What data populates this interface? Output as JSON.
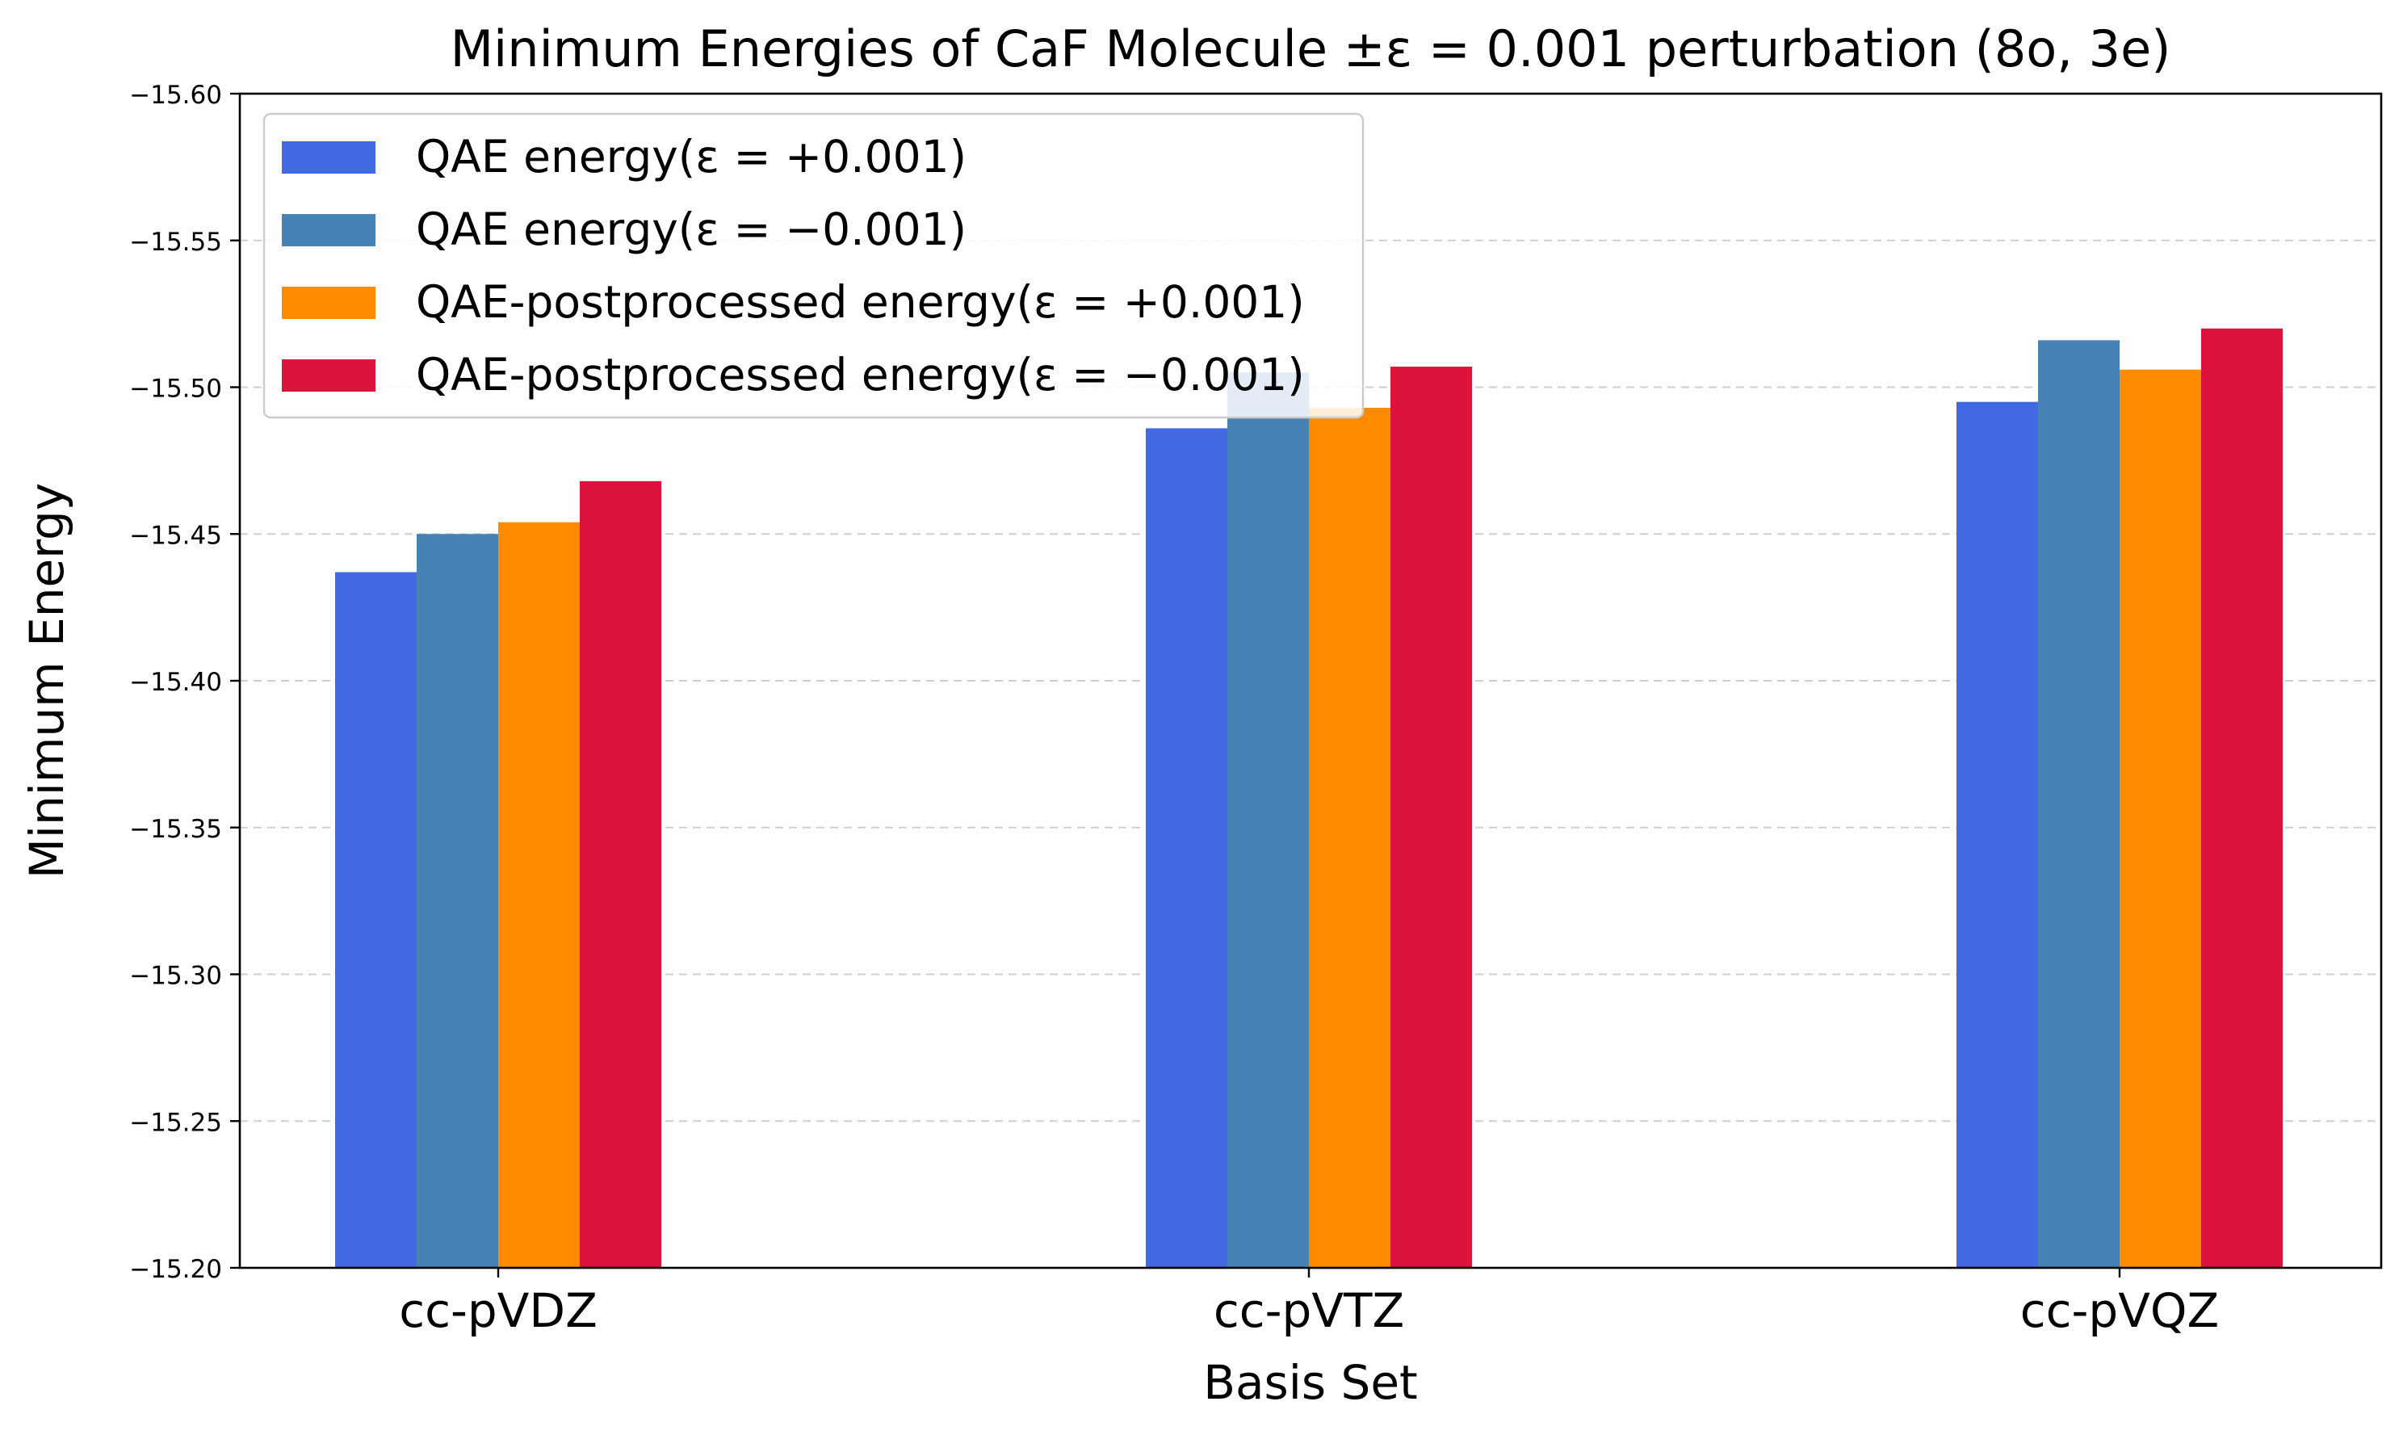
{
  "chart_data": {
    "type": "bar",
    "title": "Minimum Energies of CaF Molecule ±ε = 0.001 perturbation (8o, 3e)",
    "xlabel": "Basis Set",
    "ylabel": "Minimum Energy",
    "categories": [
      "cc-pVDZ",
      "cc-pVTZ",
      "cc-pVQZ"
    ],
    "ylim": [
      -15.2,
      -15.6
    ],
    "y_axis_inverted": true,
    "yticks": [
      -15.6,
      -15.55,
      -15.5,
      -15.45,
      -15.4,
      -15.35,
      -15.3,
      -15.25,
      -15.2
    ],
    "ytick_labels": [
      "−15.60",
      "−15.55",
      "−15.50",
      "−15.45",
      "−15.40",
      "−15.35",
      "−15.30",
      "−15.25",
      "−15.20"
    ],
    "grid": "horizontal dashed",
    "legend_position": "top-left",
    "series": [
      {
        "name": "QAE energy(ε = +0.001)",
        "color": "#4169E1",
        "values": [
          -15.437,
          -15.486,
          -15.495
        ]
      },
      {
        "name": "QAE energy(ε = −0.001)",
        "color": "#4682B4",
        "values": [
          -15.45,
          -15.505,
          -15.516
        ]
      },
      {
        "name": "QAE-postprocessed energy(ε = +0.001)",
        "color": "#FF8C00",
        "values": [
          -15.454,
          -15.493,
          -15.506
        ]
      },
      {
        "name": "QAE-postprocessed energy(ε = −0.001)",
        "color": "#DC143C",
        "values": [
          -15.468,
          -15.507,
          -15.52
        ]
      }
    ]
  }
}
